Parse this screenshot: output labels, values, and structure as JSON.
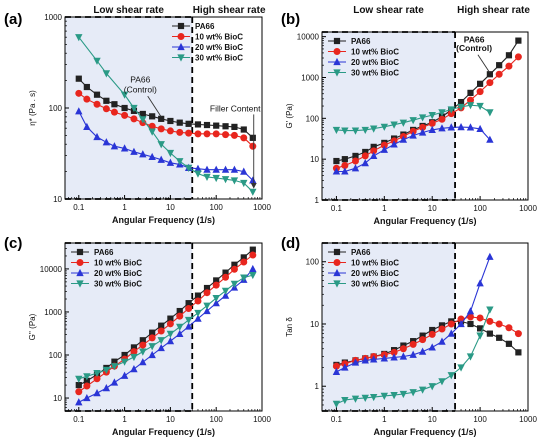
{
  "colors": {
    "PA66": "#222222",
    "10 wt% BioC": "#e8261e",
    "20 wt% BioC": "#2a35d6",
    "30 wt% BioC": "#2a9a86",
    "shade": "#e6ebf7"
  },
  "chart_data": [
    {
      "panel_label": "(a)",
      "type": "line",
      "scale": "log-log",
      "top_labels": [
        "Low shear rate",
        "High shear rate"
      ],
      "xlabel": "Angular Frequency (1/s)",
      "ylabel": "η* (Pa . s)",
      "xlim": [
        0.05,
        1000
      ],
      "ylim": [
        10,
        1000
      ],
      "xticks": [
        "0.1",
        "1",
        "10",
        "100",
        "1000"
      ],
      "yticks": [
        "10",
        "100",
        "1000"
      ],
      "divider_x": 30,
      "shaded": "low",
      "legend_position": "top-right",
      "annotations": [
        {
          "text": "PA66",
          "x": 2.2,
          "y": 190
        },
        {
          "text": "(Control)",
          "x": 2.2,
          "y": 148
        },
        {
          "text": "Filler Content",
          "x": 260,
          "y": 92
        }
      ],
      "series": [
        {
          "name": "PA66",
          "marker": "square",
          "x": [
            0.1,
            0.15,
            0.25,
            0.4,
            0.6,
            1,
            1.6,
            2.5,
            4,
            6.3,
            10,
            16,
            25,
            40,
            63,
            100,
            160,
            250,
            400,
            630
          ],
          "y": [
            210,
            170,
            140,
            120,
            110,
            100,
            93,
            86,
            81,
            76,
            72,
            69,
            67,
            66,
            65,
            64,
            63,
            62,
            58,
            47
          ]
        },
        {
          "name": "10 wt% BioC",
          "marker": "circle",
          "x": [
            0.1,
            0.15,
            0.25,
            0.4,
            0.6,
            1,
            1.6,
            2.5,
            4,
            6.3,
            10,
            16,
            25,
            40,
            63,
            100,
            160,
            250,
            400,
            630
          ],
          "y": [
            145,
            125,
            110,
            98,
            90,
            83,
            76,
            69,
            63,
            59,
            56,
            54,
            53,
            52,
            52,
            52,
            51,
            50,
            47,
            38
          ]
        },
        {
          "name": "20 wt% BioC",
          "marker": "triangle-up",
          "x": [
            0.1,
            0.15,
            0.25,
            0.4,
            0.6,
            1,
            1.6,
            2.5,
            4,
            6.3,
            10,
            16,
            25,
            40,
            63,
            100,
            160,
            250,
            400,
            630
          ],
          "y": [
            92,
            62,
            48,
            42,
            38,
            36,
            33,
            31,
            29,
            27,
            25,
            24,
            22,
            21.5,
            21,
            21,
            21,
            21,
            20,
            16
          ]
        },
        {
          "name": "30 wt% BioC",
          "marker": "triangle-down",
          "x": [
            0.1,
            0.25,
            0.4,
            1,
            1.6,
            2.5,
            4,
            6.3,
            10,
            16,
            25,
            40,
            63,
            100,
            160,
            250,
            400,
            630
          ],
          "y": [
            600,
            330,
            240,
            140,
            100,
            75,
            55,
            40,
            32,
            26,
            22,
            19,
            17.5,
            17,
            16.5,
            16,
            15,
            12
          ]
        }
      ]
    },
    {
      "panel_label": "(b)",
      "type": "line",
      "scale": "log-log",
      "top_labels": [
        "Low shear rate",
        "High shear rate"
      ],
      "xlabel": "Angular Frequency (1/s)",
      "ylabel": "G' (Pa)",
      "xlim": [
        0.05,
        1000
      ],
      "ylim": [
        1,
        13000
      ],
      "xticks": [
        "0.1",
        "1",
        "10",
        "100",
        "1000"
      ],
      "yticks": [
        "1",
        "10",
        "100",
        "1000",
        "10000"
      ],
      "divider_x": 30,
      "shaded": "low",
      "legend_position": "top-left",
      "annotations": [
        {
          "text": "PA66",
          "x": 75,
          "y": 7200
        },
        {
          "text": "(Control)",
          "x": 75,
          "y": 4400
        }
      ],
      "series": [
        {
          "name": "PA66",
          "marker": "square",
          "x": [
            0.1,
            0.15,
            0.25,
            0.4,
            0.6,
            1,
            1.6,
            2.5,
            4,
            6.3,
            10,
            16,
            25,
            40,
            63,
            100,
            160,
            250,
            400,
            630
          ],
          "y": [
            9,
            10,
            12,
            15,
            20,
            25,
            32,
            40,
            52,
            65,
            80,
            110,
            160,
            250,
            420,
            700,
            1200,
            2000,
            3500,
            8000
          ]
        },
        {
          "name": "10 wt% BioC",
          "marker": "circle",
          "x": [
            0.1,
            0.15,
            0.25,
            0.4,
            0.6,
            1,
            1.6,
            2.5,
            4,
            6.3,
            10,
            16,
            25,
            40,
            63,
            100,
            160,
            250,
            400,
            630
          ],
          "y": [
            6,
            7,
            9,
            12,
            16,
            22,
            28,
            36,
            48,
            60,
            75,
            95,
            130,
            180,
            280,
            450,
            750,
            1200,
            1900,
            3200
          ]
        },
        {
          "name": "20 wt% BioC",
          "marker": "triangle-up",
          "x": [
            0.1,
            0.15,
            0.25,
            0.4,
            0.6,
            1,
            1.6,
            2.5,
            4,
            6.3,
            10,
            16,
            25,
            40,
            63,
            100,
            160
          ],
          "y": [
            5,
            5,
            6,
            8,
            12,
            17,
            23,
            30,
            38,
            45,
            52,
            57,
            60,
            61,
            60,
            55,
            30
          ]
        },
        {
          "name": "30 wt% BioC",
          "marker": "triangle-down",
          "x": [
            0.1,
            0.15,
            0.25,
            0.4,
            0.6,
            1,
            1.6,
            2.5,
            4,
            6.3,
            10,
            16,
            25,
            40,
            63,
            100,
            160
          ],
          "y": [
            52,
            50,
            50,
            52,
            56,
            62,
            70,
            78,
            90,
            105,
            120,
            140,
            165,
            190,
            210,
            200,
            140
          ]
        }
      ]
    },
    {
      "panel_label": "(c)",
      "type": "line",
      "scale": "log-log",
      "xlabel": "Angular Frequency (1/s)",
      "ylabel": "G'' (Pa)",
      "xlim": [
        0.05,
        1000
      ],
      "ylim": [
        5,
        40000
      ],
      "xticks": [
        "0.1",
        "1",
        "10",
        "100",
        "1000"
      ],
      "yticks": [
        "10",
        "100",
        "1000",
        "10000"
      ],
      "divider_x": 30,
      "shaded": "low",
      "legend_position": "top-left",
      "series": [
        {
          "name": "PA66",
          "marker": "square",
          "x": [
            0.1,
            0.15,
            0.25,
            0.4,
            0.6,
            1,
            1.6,
            2.5,
            4,
            6.3,
            10,
            16,
            25,
            40,
            63,
            100,
            160,
            250,
            400,
            630
          ],
          "y": [
            20,
            25,
            35,
            50,
            70,
            100,
            150,
            220,
            330,
            480,
            700,
            1050,
            1600,
            2400,
            3600,
            5400,
            8200,
            12500,
            18500,
            28000
          ]
        },
        {
          "name": "10 wt% BioC",
          "marker": "circle",
          "x": [
            0.1,
            0.15,
            0.25,
            0.4,
            0.6,
            1,
            1.6,
            2.5,
            4,
            6.3,
            10,
            16,
            25,
            40,
            63,
            100,
            160,
            250,
            400,
            630
          ],
          "y": [
            14,
            19,
            28,
            40,
            55,
            80,
            120,
            170,
            250,
            360,
            530,
            800,
            1200,
            1800,
            2800,
            4200,
            6400,
            9800,
            14500,
            21000
          ]
        },
        {
          "name": "20 wt% BioC",
          "marker": "triangle-up",
          "x": [
            0.1,
            0.15,
            0.25,
            0.4,
            0.6,
            1,
            1.6,
            2.5,
            4,
            6.3,
            10,
            16,
            25,
            40,
            63,
            100,
            160,
            250,
            400,
            630
          ],
          "y": [
            8,
            10,
            13,
            17,
            23,
            33,
            47,
            68,
            100,
            145,
            210,
            310,
            460,
            700,
            1050,
            1600,
            2400,
            3700,
            5600,
            10000
          ]
        },
        {
          "name": "30 wt% BioC",
          "marker": "triangle-down",
          "x": [
            0.1,
            0.15,
            0.25,
            0.4,
            0.6,
            1,
            1.6,
            2.5,
            4,
            6.3,
            10,
            16,
            25,
            40,
            63,
            100,
            160,
            250,
            400,
            630
          ],
          "y": [
            28,
            32,
            38,
            45,
            55,
            70,
            90,
            120,
            160,
            220,
            310,
            450,
            650,
            950,
            1400,
            2100,
            3100,
            4500,
            6300,
            7200
          ]
        }
      ]
    },
    {
      "panel_label": "(d)",
      "type": "line",
      "scale": "log-log",
      "xlabel": "Angular Frequency (1/s)",
      "ylabel": "Tan δ",
      "xlim": [
        0.05,
        1000
      ],
      "ylim": [
        0.4,
        200
      ],
      "xticks": [
        "0.1",
        "1",
        "10",
        "100",
        "1000"
      ],
      "yticks": [
        "1",
        "10",
        "100"
      ],
      "divider_x": 30,
      "shaded": "low",
      "legend_position": "top-left",
      "series": [
        {
          "name": "PA66",
          "marker": "square",
          "x": [
            0.1,
            0.15,
            0.25,
            0.4,
            0.6,
            1,
            1.6,
            2.5,
            4,
            6.3,
            10,
            16,
            25,
            40,
            63,
            100,
            160,
            250,
            400,
            630
          ],
          "y": [
            2.2,
            2.4,
            2.6,
            2.8,
            3.0,
            3.3,
            3.8,
            4.5,
            5.3,
            6.5,
            8.0,
            9.5,
            11,
            11,
            10,
            8.5,
            7.0,
            6.0,
            4.8,
            3.5
          ]
        },
        {
          "name": "10 wt% BioC",
          "marker": "circle",
          "x": [
            0.1,
            0.15,
            0.25,
            0.4,
            0.6,
            1,
            1.6,
            2.5,
            4,
            6.3,
            10,
            16,
            25,
            40,
            63,
            100,
            160,
            250,
            400,
            630
          ],
          "y": [
            2.1,
            2.3,
            2.6,
            2.8,
            3.0,
            3.2,
            3.5,
            4.0,
            4.7,
            5.6,
            6.8,
            8.3,
            10,
            12,
            13,
            12.5,
            11,
            10,
            8.7,
            7.0
          ]
        },
        {
          "name": "20 wt% BioC",
          "marker": "triangle-up",
          "x": [
            0.1,
            0.15,
            0.25,
            0.4,
            0.6,
            1,
            1.6,
            2.5,
            4,
            6.3,
            10,
            16,
            25,
            40,
            63,
            100,
            160
          ],
          "y": [
            1.7,
            2.0,
            2.4,
            2.6,
            2.7,
            2.8,
            2.9,
            3.0,
            3.2,
            3.6,
            4.2,
            5.2,
            7.0,
            10,
            16,
            45,
            120
          ]
        },
        {
          "name": "30 wt% BioC",
          "marker": "triangle-down",
          "x": [
            0.1,
            0.15,
            0.25,
            0.4,
            0.6,
            1,
            1.6,
            2.5,
            4,
            6.3,
            10,
            16,
            25,
            40,
            63,
            100,
            160
          ],
          "y": [
            0.52,
            0.6,
            0.63,
            0.65,
            0.67,
            0.7,
            0.72,
            0.75,
            0.8,
            0.88,
            1.0,
            1.2,
            1.5,
            2.0,
            3.0,
            6.5,
            17
          ]
        }
      ]
    }
  ]
}
